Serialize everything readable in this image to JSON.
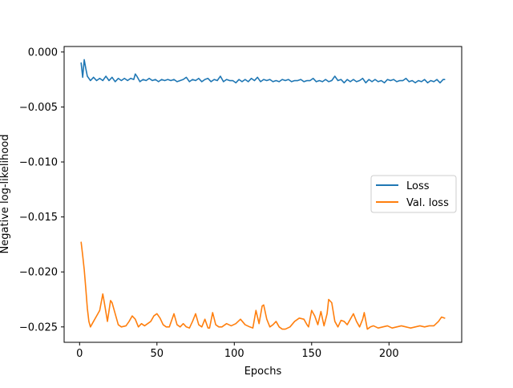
{
  "chart_data": {
    "type": "line",
    "title": "",
    "xlabel": "Epochs",
    "ylabel": "Negative log-likelihood",
    "xlim": [
      -10,
      247
    ],
    "ylim": [
      -0.0264,
      0.0005
    ],
    "xticks": [
      0,
      50,
      100,
      150,
      200
    ],
    "xtick_labels": [
      "0",
      "50",
      "100",
      "150",
      "200"
    ],
    "yticks": [
      0.0,
      -0.005,
      -0.01,
      -0.015,
      -0.02,
      -0.025
    ],
    "ytick_labels": [
      "0.000",
      "−0.005",
      "−0.010",
      "−0.015",
      "−0.020",
      "−0.025"
    ],
    "grid": false,
    "legend_position": "center-right",
    "series": [
      {
        "name": "Loss",
        "color": "#1f77b4",
        "x": [
          1,
          2,
          3,
          4,
          5,
          7,
          9,
          11,
          13,
          15,
          17,
          19,
          21,
          23,
          25,
          27,
          29,
          31,
          33,
          35,
          36,
          37,
          39,
          41,
          43,
          45,
          47,
          49,
          51,
          53,
          55,
          57,
          59,
          61,
          63,
          65,
          67,
          69,
          71,
          73,
          75,
          77,
          79,
          81,
          83,
          85,
          87,
          89,
          91,
          93,
          95,
          97,
          99,
          101,
          103,
          105,
          107,
          109,
          111,
          113,
          115,
          117,
          119,
          121,
          123,
          125,
          127,
          129,
          131,
          133,
          135,
          137,
          139,
          141,
          143,
          145,
          147,
          149,
          151,
          153,
          155,
          157,
          159,
          161,
          163,
          165,
          167,
          169,
          171,
          173,
          175,
          177,
          179,
          181,
          183,
          185,
          187,
          189,
          191,
          193,
          195,
          197,
          199,
          201,
          203,
          205,
          207,
          209,
          211,
          213,
          215,
          217,
          219,
          221,
          223,
          225,
          227,
          229,
          231,
          233,
          235,
          236
        ],
        "y": [
          -0.001,
          -0.0023,
          -0.0007,
          -0.0015,
          -0.0022,
          -0.0026,
          -0.0023,
          -0.0026,
          -0.0024,
          -0.0026,
          -0.0022,
          -0.0026,
          -0.0023,
          -0.0027,
          -0.0024,
          -0.0026,
          -0.0024,
          -0.0026,
          -0.0024,
          -0.0025,
          -0.002,
          -0.0022,
          -0.0027,
          -0.0025,
          -0.0026,
          -0.0024,
          -0.0026,
          -0.0025,
          -0.0027,
          -0.0025,
          -0.0026,
          -0.0025,
          -0.0026,
          -0.0025,
          -0.0027,
          -0.0026,
          -0.0025,
          -0.0023,
          -0.0027,
          -0.0025,
          -0.0026,
          -0.0024,
          -0.0027,
          -0.0025,
          -0.0024,
          -0.0027,
          -0.0025,
          -0.0026,
          -0.0022,
          -0.0027,
          -0.0025,
          -0.0026,
          -0.0026,
          -0.0028,
          -0.0025,
          -0.0027,
          -0.0025,
          -0.0027,
          -0.0024,
          -0.0026,
          -0.0023,
          -0.0027,
          -0.0025,
          -0.0026,
          -0.0025,
          -0.0027,
          -0.0026,
          -0.0027,
          -0.0025,
          -0.0026,
          -0.0025,
          -0.0027,
          -0.0026,
          -0.0026,
          -0.0025,
          -0.0027,
          -0.0026,
          -0.0026,
          -0.0024,
          -0.0027,
          -0.0026,
          -0.0027,
          -0.0025,
          -0.0027,
          -0.0026,
          -0.0022,
          -0.0026,
          -0.0025,
          -0.0028,
          -0.0025,
          -0.0027,
          -0.0025,
          -0.0027,
          -0.0026,
          -0.0024,
          -0.0028,
          -0.0025,
          -0.0027,
          -0.0025,
          -0.0027,
          -0.0026,
          -0.0028,
          -0.0025,
          -0.0026,
          -0.0025,
          -0.0027,
          -0.0026,
          -0.0026,
          -0.0024,
          -0.0027,
          -0.0026,
          -0.0028,
          -0.0026,
          -0.0027,
          -0.0025,
          -0.0028,
          -0.0026,
          -0.0027,
          -0.0025,
          -0.0028,
          -0.0025,
          -0.0025
        ]
      },
      {
        "name": "Val. loss",
        "color": "#ff7f0e",
        "x": [
          1,
          2,
          3,
          4,
          5,
          6,
          7,
          9,
          11,
          13,
          15,
          16,
          18,
          20,
          21,
          23,
          25,
          27,
          30,
          32,
          34,
          36,
          38,
          40,
          42,
          44,
          46,
          48,
          50,
          52,
          54,
          56,
          58,
          61,
          63,
          65,
          67,
          69,
          71,
          73,
          75,
          77,
          79,
          81,
          83,
          84,
          86,
          88,
          90,
          92,
          95,
          98,
          101,
          104,
          107,
          110,
          112,
          114,
          116,
          118,
          119,
          121,
          123,
          125,
          127,
          129,
          131,
          133,
          136,
          139,
          142,
          145,
          147,
          148,
          150,
          152,
          154,
          156,
          158,
          160,
          161,
          163,
          165,
          167,
          169,
          171,
          173,
          175,
          177,
          179,
          181,
          183,
          184,
          186,
          188,
          190,
          193,
          196,
          199,
          202,
          205,
          208,
          211,
          214,
          217,
          220,
          223,
          226,
          229,
          232,
          234,
          236
        ],
        "y": [
          -0.0173,
          -0.0185,
          -0.0198,
          -0.0215,
          -0.0233,
          -0.0245,
          -0.025,
          -0.0245,
          -0.024,
          -0.0235,
          -0.022,
          -0.0228,
          -0.0245,
          -0.0226,
          -0.0228,
          -0.0238,
          -0.0248,
          -0.025,
          -0.0249,
          -0.0245,
          -0.024,
          -0.0243,
          -0.025,
          -0.0247,
          -0.0249,
          -0.0247,
          -0.0245,
          -0.024,
          -0.0238,
          -0.0242,
          -0.0248,
          -0.025,
          -0.025,
          -0.0238,
          -0.0248,
          -0.025,
          -0.0247,
          -0.025,
          -0.0251,
          -0.0245,
          -0.0238,
          -0.0248,
          -0.025,
          -0.0243,
          -0.0251,
          -0.0251,
          -0.0237,
          -0.0248,
          -0.025,
          -0.025,
          -0.0247,
          -0.0249,
          -0.0247,
          -0.0243,
          -0.0248,
          -0.025,
          -0.0251,
          -0.0235,
          -0.0247,
          -0.0231,
          -0.023,
          -0.0243,
          -0.025,
          -0.0248,
          -0.0245,
          -0.025,
          -0.0252,
          -0.0252,
          -0.025,
          -0.0245,
          -0.0242,
          -0.0243,
          -0.0248,
          -0.025,
          -0.0235,
          -0.024,
          -0.0248,
          -0.0236,
          -0.0249,
          -0.0238,
          -0.0225,
          -0.0228,
          -0.0245,
          -0.025,
          -0.0244,
          -0.0245,
          -0.0248,
          -0.0243,
          -0.0238,
          -0.0245,
          -0.025,
          -0.0243,
          -0.0237,
          -0.0252,
          -0.025,
          -0.0249,
          -0.0251,
          -0.025,
          -0.0249,
          -0.0251,
          -0.025,
          -0.0249,
          -0.025,
          -0.0251,
          -0.025,
          -0.0249,
          -0.025,
          -0.0249,
          -0.0249,
          -0.0245,
          -0.0241,
          -0.0242
        ]
      }
    ]
  }
}
